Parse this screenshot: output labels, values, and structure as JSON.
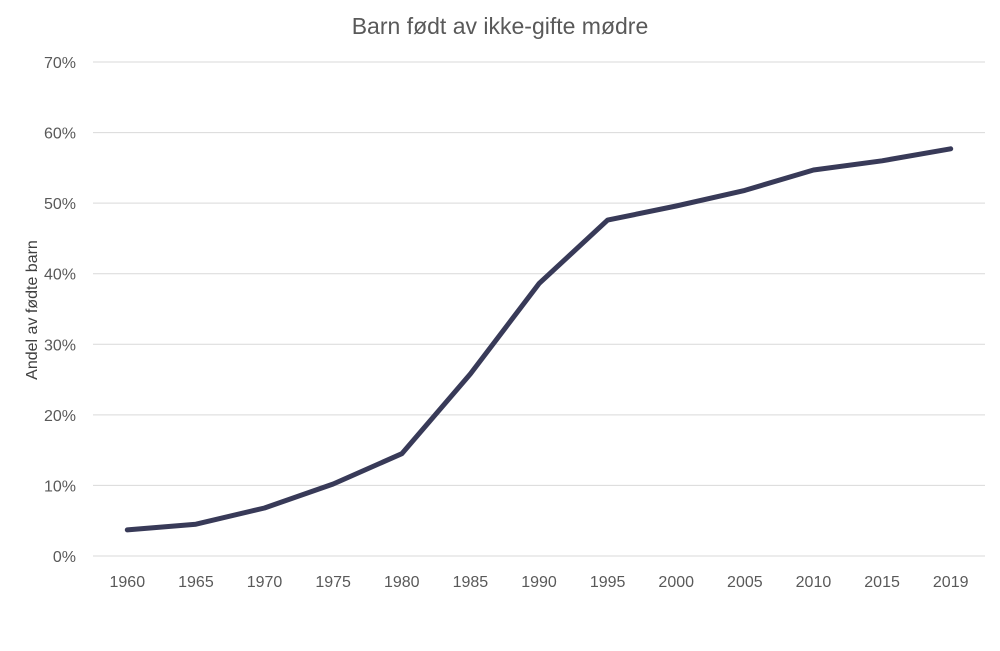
{
  "chart_data": {
    "type": "line",
    "title": "Barn født av ikke-gifte mødre",
    "xlabel": "",
    "ylabel": "Andel av fødte barn",
    "categories": [
      "1960",
      "1965",
      "1970",
      "1975",
      "1980",
      "1985",
      "1990",
      "1995",
      "2000",
      "2005",
      "2010",
      "2015",
      "2019"
    ],
    "series": [
      {
        "values": [
          3.7,
          4.5,
          6.8,
          10.2,
          14.5,
          25.8,
          38.6,
          47.6,
          49.6,
          51.8,
          54.7,
          56.0,
          57.7
        ],
        "color": "#383a58"
      }
    ],
    "ylim": [
      0,
      70
    ],
    "yticks": [
      {
        "value": 0,
        "label": "0%"
      },
      {
        "value": 10,
        "label": "10%"
      },
      {
        "value": 20,
        "label": "20%"
      },
      {
        "value": 30,
        "label": "30%"
      },
      {
        "value": 40,
        "label": "40%"
      },
      {
        "value": 50,
        "label": "50%"
      },
      {
        "value": 60,
        "label": "60%"
      },
      {
        "value": 70,
        "label": "70%"
      }
    ],
    "grid": true,
    "legend": "none"
  }
}
